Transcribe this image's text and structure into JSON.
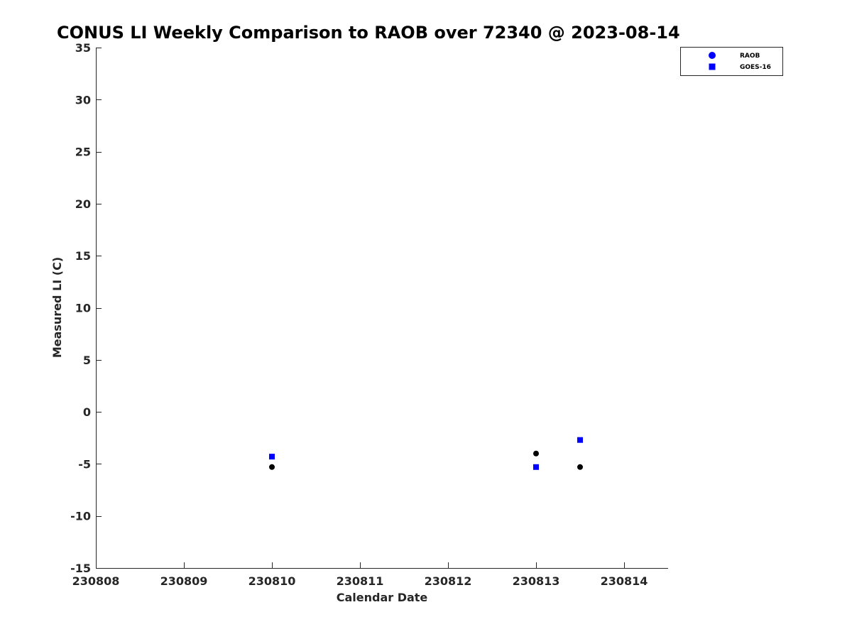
{
  "chart_data": {
    "type": "scatter",
    "title": "CONUS LI Weekly Comparison to RAOB over 72340 @ 2023-08-14",
    "xlabel": "Calendar Date",
    "ylabel": "Measured LI (C)",
    "xlim": [
      0,
      6.5
    ],
    "ylim": [
      -15,
      35
    ],
    "x_ticks": [
      0,
      1,
      2,
      3,
      4,
      5,
      6
    ],
    "x_tick_labels": [
      "230808",
      "230809",
      "230810",
      "230811",
      "230812",
      "230813",
      "230814"
    ],
    "y_ticks": [
      -15,
      -10,
      -5,
      0,
      5,
      10,
      15,
      20,
      25,
      30,
      35
    ],
    "y_tick_labels": [
      "-15",
      "-10",
      "-5",
      "0",
      "5",
      "10",
      "15",
      "20",
      "25",
      "30",
      "35"
    ],
    "grid": false,
    "legend_position": "top-right",
    "series": [
      {
        "name": "RAOB",
        "legend_color": "#0000ff",
        "point_color": "#000000",
        "marker": "circle",
        "x": [
          2,
          5,
          5.5
        ],
        "y": [
          -5.3,
          -4.0,
          -5.3
        ]
      },
      {
        "name": "GOES-16",
        "legend_color": "#0000ff",
        "point_color": "#0000ff",
        "marker": "square",
        "x": [
          2,
          5,
          5.5
        ],
        "y": [
          -4.3,
          -5.3,
          -2.7
        ]
      }
    ]
  }
}
